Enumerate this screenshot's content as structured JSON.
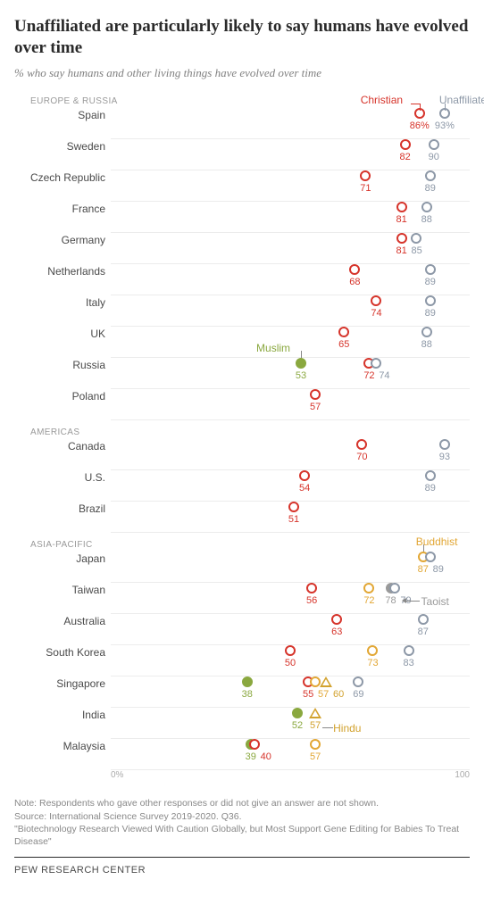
{
  "title": "Unaffiliated are particularly likely to say humans have evolved over time",
  "subtitle": "% who say humans and other living things have evolved over time",
  "xAxis": {
    "min": 0,
    "max": 100,
    "labels": [
      "0%",
      "100"
    ]
  },
  "colors": {
    "christian": "#d6342b",
    "unaffiliated": "#8d98a7",
    "muslim": "#8aa83f",
    "buddhist": "#e2a735",
    "taoist": "#9a9a9a",
    "hindu": "#d2a22e"
  },
  "seriesLabels": {
    "christian": "Christian",
    "unaffiliated": "Unaffiliated",
    "muslim": "Muslim",
    "buddhist": "Buddhist",
    "taoist": "Taoist",
    "hindu": "Hindu"
  },
  "sections": [
    {
      "header": "EUROPE & RUSSIA",
      "rows": [
        {
          "label": "Spain",
          "points": [
            {
              "series": "christian",
              "value": 86,
              "text": "86%",
              "shape": "circle"
            },
            {
              "series": "unaffiliated",
              "value": 93,
              "text": "93%",
              "shape": "circle"
            }
          ]
        },
        {
          "label": "Sweden",
          "points": [
            {
              "series": "christian",
              "value": 82,
              "text": "82",
              "shape": "circle"
            },
            {
              "series": "unaffiliated",
              "value": 90,
              "text": "90",
              "shape": "circle"
            }
          ]
        },
        {
          "label": "Czech Republic",
          "points": [
            {
              "series": "christian",
              "value": 71,
              "text": "71",
              "shape": "circle"
            },
            {
              "series": "unaffiliated",
              "value": 89,
              "text": "89",
              "shape": "circle"
            }
          ]
        },
        {
          "label": "France",
          "points": [
            {
              "series": "christian",
              "value": 81,
              "text": "81",
              "shape": "circle"
            },
            {
              "series": "unaffiliated",
              "value": 88,
              "text": "88",
              "shape": "circle"
            }
          ]
        },
        {
          "label": "Germany",
          "points": [
            {
              "series": "christian",
              "value": 81,
              "text": "81",
              "shape": "circle"
            },
            {
              "series": "unaffiliated",
              "value": 85,
              "text": "85",
              "shape": "circle"
            }
          ]
        },
        {
          "label": "Netherlands",
          "points": [
            {
              "series": "christian",
              "value": 68,
              "text": "68",
              "shape": "circle"
            },
            {
              "series": "unaffiliated",
              "value": 89,
              "text": "89",
              "shape": "circle"
            }
          ]
        },
        {
          "label": "Italy",
          "points": [
            {
              "series": "christian",
              "value": 74,
              "text": "74",
              "shape": "circle"
            },
            {
              "series": "unaffiliated",
              "value": 89,
              "text": "89",
              "shape": "circle"
            }
          ]
        },
        {
          "label": "UK",
          "points": [
            {
              "series": "christian",
              "value": 65,
              "text": "65",
              "shape": "circle"
            },
            {
              "series": "unaffiliated",
              "value": 88,
              "text": "88",
              "shape": "circle"
            }
          ]
        },
        {
          "label": "Russia",
          "points": [
            {
              "series": "muslim",
              "value": 53,
              "text": "53",
              "shape": "circle",
              "filled": true
            },
            {
              "series": "christian",
              "value": 72,
              "text": "72",
              "shape": "circle"
            },
            {
              "series": "unaffiliated",
              "value": 74,
              "text": "74",
              "shape": "circle"
            }
          ],
          "inlineLabel": {
            "series": "muslim",
            "text": "Muslim",
            "side": "top-left"
          }
        },
        {
          "label": "Poland",
          "points": [
            {
              "series": "christian",
              "value": 57,
              "text": "57",
              "shape": "circle"
            }
          ]
        }
      ]
    },
    {
      "header": "AMERICAS",
      "rows": [
        {
          "label": "Canada",
          "points": [
            {
              "series": "christian",
              "value": 70,
              "text": "70",
              "shape": "circle"
            },
            {
              "series": "unaffiliated",
              "value": 93,
              "text": "93",
              "shape": "circle"
            }
          ]
        },
        {
          "label": "U.S.",
          "points": [
            {
              "series": "christian",
              "value": 54,
              "text": "54",
              "shape": "circle"
            },
            {
              "series": "unaffiliated",
              "value": 89,
              "text": "89",
              "shape": "circle"
            }
          ]
        },
        {
          "label": "Brazil",
          "points": [
            {
              "series": "christian",
              "value": 51,
              "text": "51",
              "shape": "circle"
            }
          ]
        }
      ]
    },
    {
      "header": "ASIA-PACIFIC",
      "rows": [
        {
          "label": "Japan",
          "points": [
            {
              "series": "buddhist",
              "value": 87,
              "text": "87",
              "shape": "circle"
            },
            {
              "series": "unaffiliated",
              "value": 89,
              "text": "89",
              "shape": "circle"
            }
          ],
          "inlineLabel": {
            "series": "buddhist",
            "text": "Buddhist",
            "side": "top-right"
          }
        },
        {
          "label": "Taiwan",
          "points": [
            {
              "series": "christian",
              "value": 56,
              "text": "56",
              "shape": "circle"
            },
            {
              "series": "buddhist",
              "value": 72,
              "text": "72",
              "shape": "circle"
            },
            {
              "series": "taoist",
              "value": 78,
              "text": "78",
              "shape": "circle",
              "filled": true
            },
            {
              "series": "unaffiliated",
              "value": 79,
              "text": "79",
              "shape": "circle"
            }
          ],
          "inlineLabel": {
            "series": "taoist",
            "text": "Taoist",
            "side": "right"
          }
        },
        {
          "label": "Australia",
          "points": [
            {
              "series": "christian",
              "value": 63,
              "text": "63",
              "shape": "circle"
            },
            {
              "series": "unaffiliated",
              "value": 87,
              "text": "87",
              "shape": "circle"
            }
          ]
        },
        {
          "label": "South Korea",
          "points": [
            {
              "series": "christian",
              "value": 50,
              "text": "50",
              "shape": "circle"
            },
            {
              "series": "buddhist",
              "value": 73,
              "text": "73",
              "shape": "circle"
            },
            {
              "series": "unaffiliated",
              "value": 83,
              "text": "83",
              "shape": "circle"
            }
          ]
        },
        {
          "label": "Singapore",
          "points": [
            {
              "series": "muslim",
              "value": 38,
              "text": "38",
              "shape": "circle",
              "filled": true
            },
            {
              "series": "christian",
              "value": 55,
              "text": "55",
              "shape": "circle"
            },
            {
              "series": "buddhist",
              "value": 57,
              "text": "57",
              "shape": "circle"
            },
            {
              "series": "hindu",
              "value": 60,
              "text": "60",
              "shape": "triangle"
            },
            {
              "series": "unaffiliated",
              "value": 69,
              "text": "69",
              "shape": "circle"
            }
          ]
        },
        {
          "label": "India",
          "points": [
            {
              "series": "muslim",
              "value": 52,
              "text": "52",
              "shape": "circle",
              "filled": true
            },
            {
              "series": "hindu",
              "value": 57,
              "text": "57",
              "shape": "triangle"
            }
          ],
          "inlineLabel": {
            "series": "hindu",
            "text": "Hindu",
            "side": "bottom-right"
          }
        },
        {
          "label": "Malaysia",
          "points": [
            {
              "series": "muslim",
              "value": 39,
              "text": "39",
              "shape": "circle",
              "filled": true
            },
            {
              "series": "christian",
              "value": 40,
              "text": "40",
              "shape": "circle"
            },
            {
              "series": "buddhist",
              "value": 57,
              "text": "57",
              "shape": "circle"
            }
          ]
        }
      ]
    }
  ],
  "notes": [
    "Note: Respondents who gave other responses or did not give an answer are not shown.",
    "Source: International Science Survey 2019-2020. Q36.",
    "\"Biotechnology Research Viewed With Caution Globally, but Most Support Gene Editing for Babies To Treat Disease\""
  ],
  "footer": "PEW RESEARCH CENTER"
}
